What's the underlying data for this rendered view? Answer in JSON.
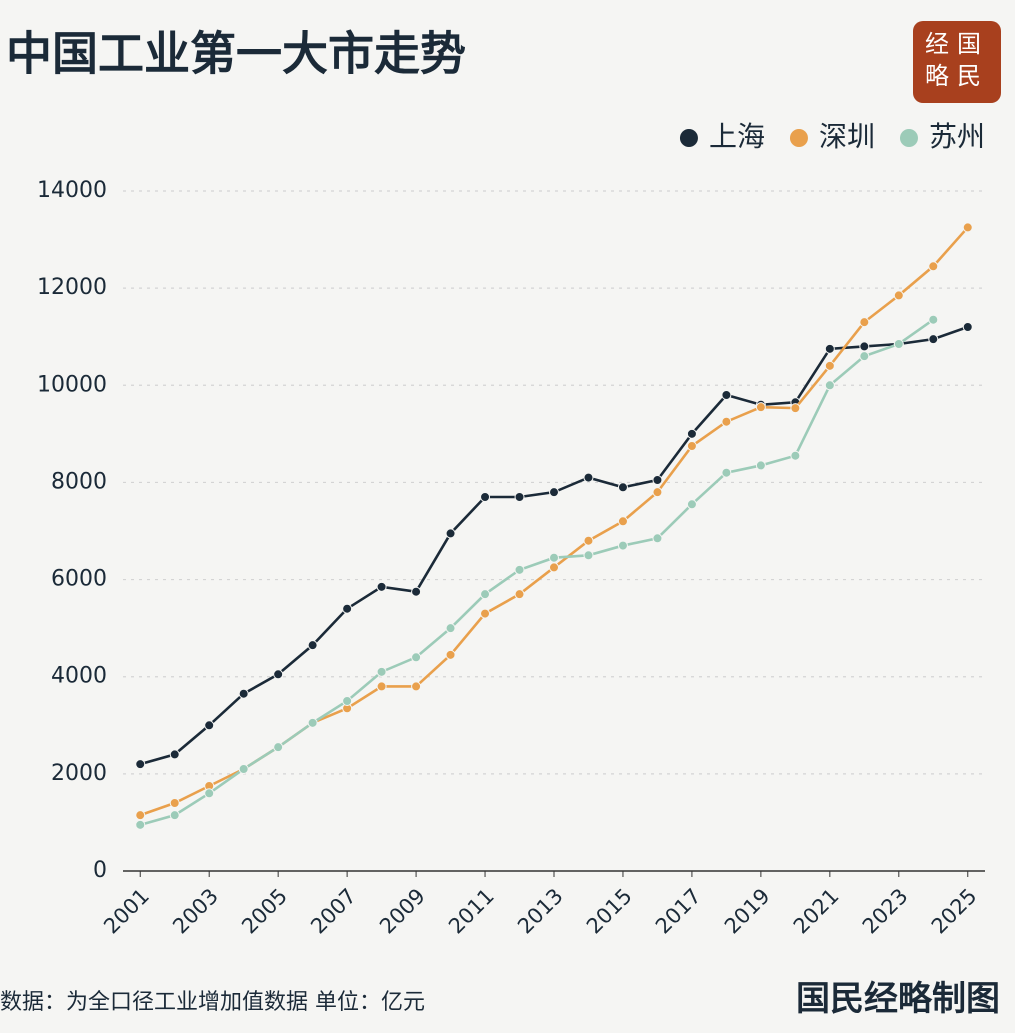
{
  "chart_data": {
    "type": "line",
    "title": "中国工业第一大市走势",
    "logo": [
      "经国",
      "略民"
    ],
    "x": [
      2001,
      2002,
      2003,
      2004,
      2005,
      2006,
      2007,
      2008,
      2009,
      2010,
      2011,
      2012,
      2013,
      2014,
      2015,
      2016,
      2017,
      2018,
      2019,
      2020,
      2021,
      2022,
      2023,
      2024,
      2025
    ],
    "series": [
      {
        "name": "上海",
        "color": "#1b2a38",
        "values": [
          2200,
          2400,
          3000,
          3650,
          4050,
          4650,
          5400,
          5850,
          5750,
          6950,
          7700,
          7700,
          7800,
          8100,
          7900,
          8050,
          9000,
          9800,
          9600,
          9650,
          10750,
          10800,
          10850,
          10950,
          11200
        ]
      },
      {
        "name": "深圳",
        "color": "#e9a04c",
        "values": [
          1150,
          1400,
          1750,
          2100,
          2550,
          3050,
          3350,
          3800,
          3800,
          4450,
          5300,
          5700,
          6250,
          6800,
          7200,
          7800,
          8750,
          9250,
          9550,
          9530,
          10400,
          11300,
          11850,
          12450,
          13250
        ]
      },
      {
        "name": "苏州",
        "color": "#9ccbb8",
        "values": [
          950,
          1150,
          1600,
          2100,
          2550,
          3050,
          3500,
          4100,
          4400,
          5000,
          5700,
          6200,
          6450,
          6500,
          6700,
          6850,
          7550,
          8200,
          8350,
          8550,
          10000,
          10600,
          10850,
          11350,
          null
        ]
      }
    ],
    "xlim": [
      2000.5,
      2025.5
    ],
    "xticks": [
      2001,
      2003,
      2005,
      2007,
      2009,
      2011,
      2013,
      2015,
      2017,
      2019,
      2021,
      2023,
      2025
    ],
    "ylim": [
      0,
      14000
    ],
    "yticks": [
      0,
      2000,
      4000,
      6000,
      8000,
      10000,
      12000,
      14000
    ],
    "grid": true,
    "legend": "top-right",
    "footnote": "数据：为全口径工业增加值数据  单位：亿元",
    "credit": "国民经略制图"
  }
}
